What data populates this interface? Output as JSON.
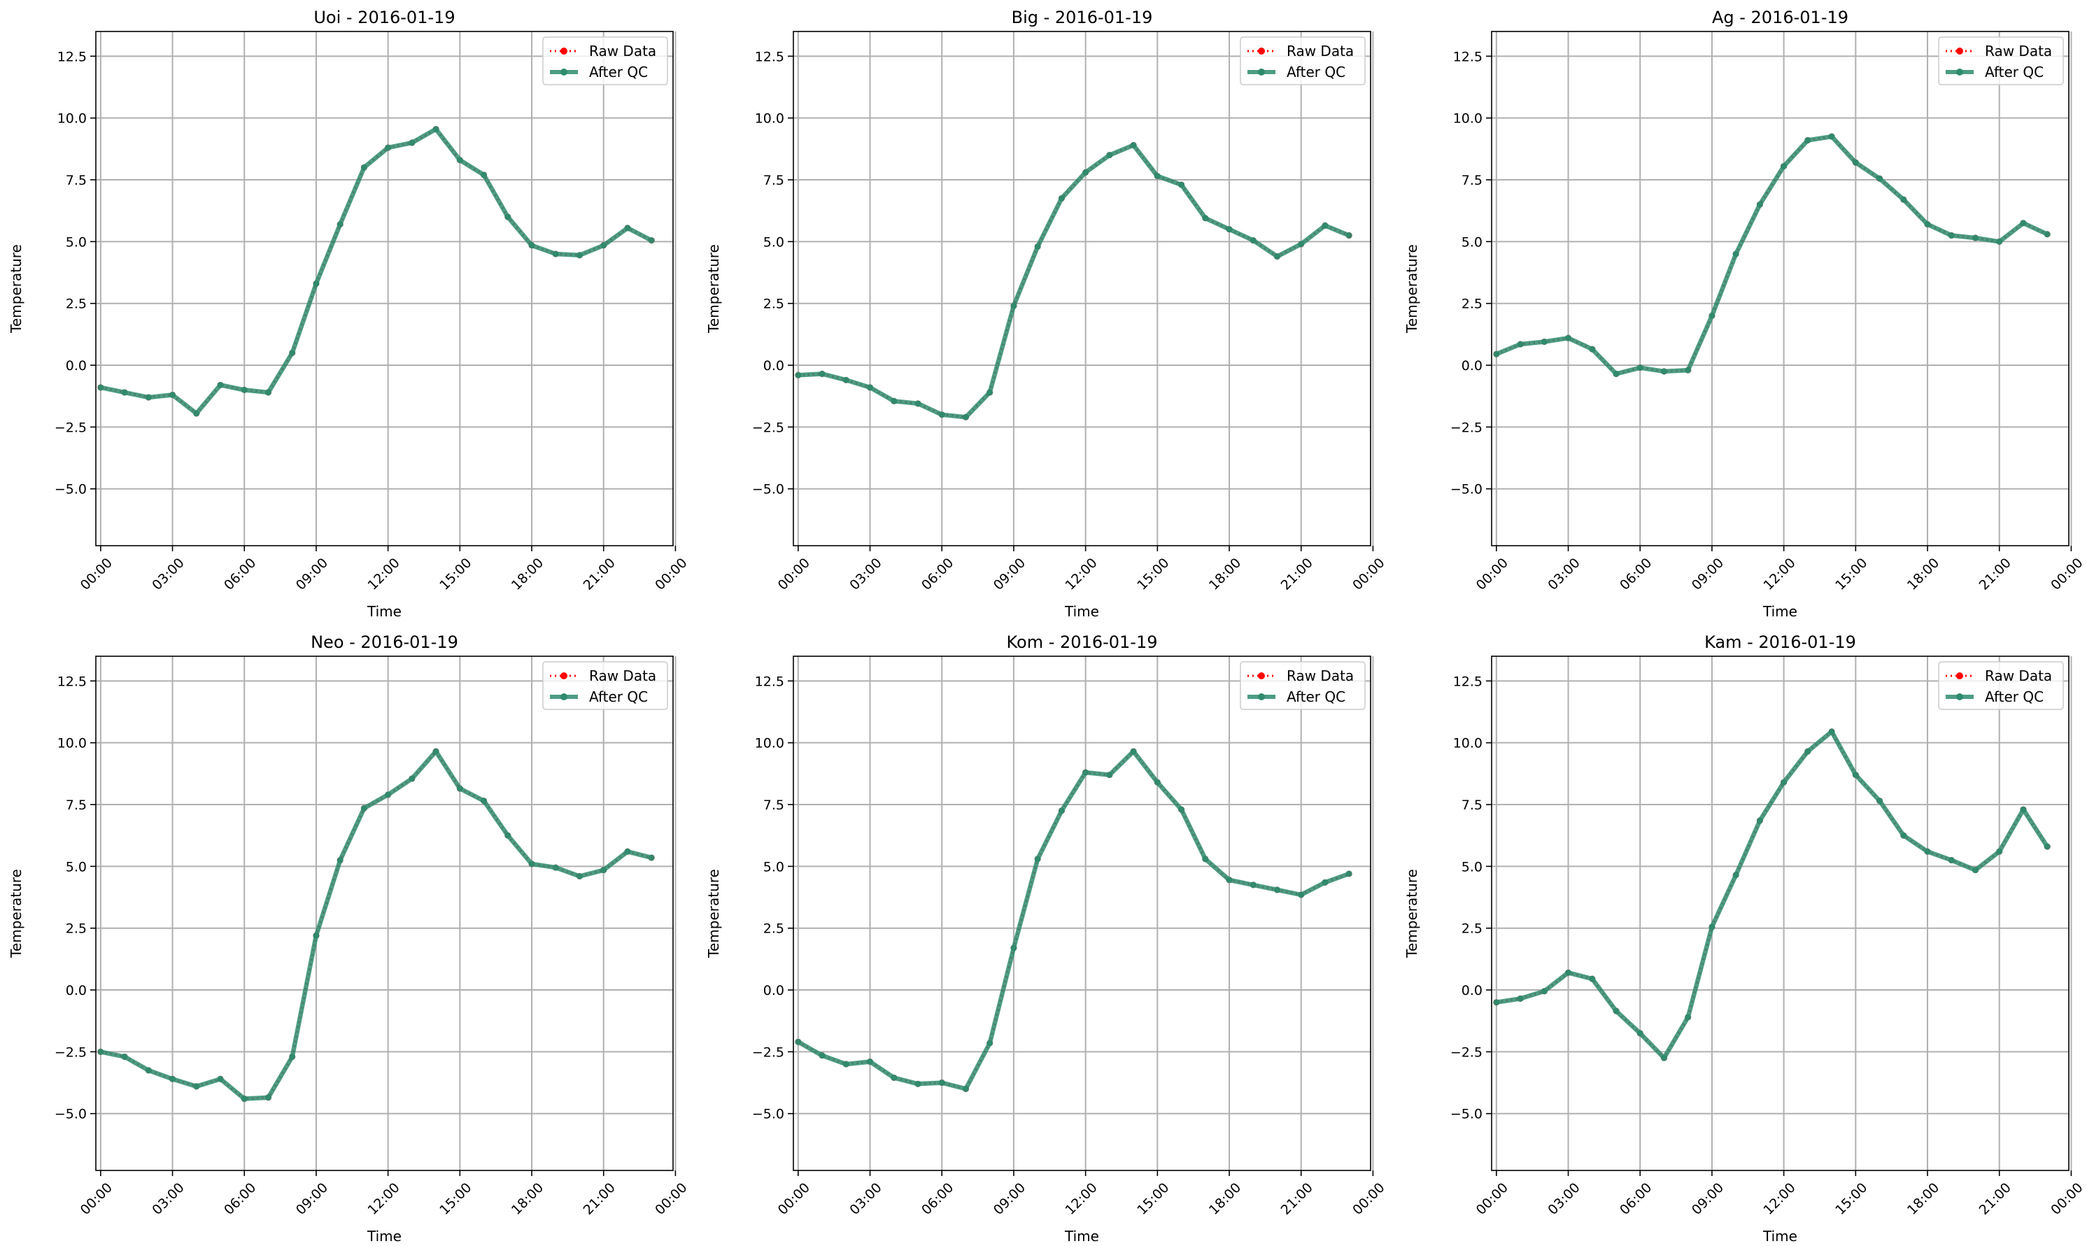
{
  "figure": {
    "raw_color": "#ff0000",
    "qc_color": "#2e8b6e",
    "legend_labels": [
      "Raw Data",
      "After QC"
    ],
    "legend_position": "top-right",
    "xlabel": "Time",
    "ylabel": "Temperature",
    "grid": true
  },
  "chart_data": [
    {
      "type": "line",
      "title": "Uoi - 2016-01-19",
      "xlabel": "Time",
      "ylabel": "Temperature",
      "x": [
        0,
        1,
        2,
        3,
        4,
        5,
        6,
        7,
        8,
        9,
        10,
        11,
        12,
        13,
        14,
        15,
        16,
        17,
        18,
        19,
        20,
        21,
        22,
        23
      ],
      "series": [
        {
          "name": "Raw Data",
          "values": [
            -0.9,
            -1.1,
            -1.3,
            -1.2,
            -1.95,
            -0.8,
            -1.0,
            -1.1,
            0.5,
            3.3,
            5.7,
            8.0,
            8.8,
            9.0,
            9.55,
            8.3,
            7.7,
            6.0,
            4.85,
            4.5,
            4.45,
            4.85,
            5.55,
            5.05
          ]
        },
        {
          "name": "After QC",
          "values": [
            -0.9,
            -1.1,
            -1.3,
            -1.2,
            -1.95,
            -0.8,
            -1.0,
            -1.1,
            0.5,
            3.3,
            5.7,
            8.0,
            8.8,
            9.0,
            9.55,
            8.3,
            7.7,
            6.0,
            4.85,
            4.5,
            4.45,
            4.85,
            5.55,
            5.05
          ]
        }
      ],
      "xlim": [
        -0.2,
        23.9
      ],
      "ylim": [
        -7.3,
        13.5
      ],
      "xticks": [
        "00:00",
        "03:00",
        "06:00",
        "09:00",
        "12:00",
        "15:00",
        "18:00",
        "21:00",
        "00:00"
      ],
      "yticks": [
        "−5.0",
        "−2.5",
        "0.0",
        "2.5",
        "5.0",
        "7.5",
        "10.0",
        "12.5"
      ]
    },
    {
      "type": "line",
      "title": "Big - 2016-01-19",
      "xlabel": "Time",
      "ylabel": "Temperature",
      "x": [
        0,
        1,
        2,
        3,
        4,
        5,
        6,
        7,
        8,
        9,
        10,
        11,
        12,
        13,
        14,
        15,
        16,
        17,
        18,
        19,
        20,
        21,
        22,
        23
      ],
      "series": [
        {
          "name": "Raw Data",
          "values": [
            -0.4,
            -0.35,
            -0.6,
            -0.9,
            -1.45,
            -1.55,
            -2.0,
            -2.1,
            -1.1,
            2.4,
            4.8,
            6.75,
            7.8,
            8.5,
            8.9,
            7.65,
            7.3,
            5.95,
            5.5,
            5.05,
            4.4,
            4.9,
            5.65,
            5.25
          ]
        },
        {
          "name": "After QC",
          "values": [
            -0.4,
            -0.35,
            -0.6,
            -0.9,
            -1.45,
            -1.55,
            -2.0,
            -2.1,
            -1.1,
            2.4,
            4.8,
            6.75,
            7.8,
            8.5,
            8.9,
            7.65,
            7.3,
            5.95,
            5.5,
            5.05,
            4.4,
            4.9,
            5.65,
            5.25
          ]
        }
      ],
      "xlim": [
        -0.2,
        23.9
      ],
      "ylim": [
        -7.3,
        13.5
      ],
      "xticks": [
        "00:00",
        "03:00",
        "06:00",
        "09:00",
        "12:00",
        "15:00",
        "18:00",
        "21:00",
        "00:00"
      ],
      "yticks": [
        "−5.0",
        "−2.5",
        "0.0",
        "2.5",
        "5.0",
        "7.5",
        "10.0",
        "12.5"
      ]
    },
    {
      "type": "line",
      "title": "Ag - 2016-01-19",
      "xlabel": "Time",
      "ylabel": "Temperature",
      "x": [
        0,
        1,
        2,
        3,
        4,
        5,
        6,
        7,
        8,
        9,
        10,
        11,
        12,
        13,
        14,
        15,
        16,
        17,
        18,
        19,
        20,
        21,
        22,
        23
      ],
      "series": [
        {
          "name": "Raw Data",
          "values": [
            0.45,
            0.85,
            0.95,
            1.1,
            0.65,
            -0.35,
            -0.1,
            -0.25,
            -0.2,
            2.0,
            4.5,
            6.5,
            8.05,
            9.1,
            9.25,
            8.2,
            7.55,
            6.7,
            5.7,
            5.25,
            5.15,
            5.0,
            5.75,
            5.3
          ]
        },
        {
          "name": "After QC",
          "values": [
            0.45,
            0.85,
            0.95,
            1.1,
            0.65,
            -0.35,
            -0.1,
            -0.25,
            -0.2,
            2.0,
            4.5,
            6.5,
            8.05,
            9.1,
            9.25,
            8.2,
            7.55,
            6.7,
            5.7,
            5.25,
            5.15,
            5.0,
            5.75,
            5.3
          ]
        }
      ],
      "xlim": [
        -0.2,
        23.9
      ],
      "ylim": [
        -7.3,
        13.5
      ],
      "xticks": [
        "00:00",
        "03:00",
        "06:00",
        "09:00",
        "12:00",
        "15:00",
        "18:00",
        "21:00",
        "00:00"
      ],
      "yticks": [
        "−5.0",
        "−2.5",
        "0.0",
        "2.5",
        "5.0",
        "7.5",
        "10.0",
        "12.5"
      ]
    },
    {
      "type": "line",
      "title": "Neo - 2016-01-19",
      "xlabel": "Time",
      "ylabel": "Temperature",
      "x": [
        0,
        1,
        2,
        3,
        4,
        5,
        6,
        7,
        8,
        9,
        10,
        11,
        12,
        13,
        14,
        15,
        16,
        17,
        18,
        19,
        20,
        21,
        22,
        23
      ],
      "series": [
        {
          "name": "Raw Data",
          "values": [
            -2.5,
            -2.7,
            -3.25,
            -3.6,
            -3.9,
            -3.6,
            -4.4,
            -4.35,
            -2.7,
            2.2,
            5.25,
            7.35,
            7.9,
            8.55,
            9.65,
            8.15,
            7.65,
            6.25,
            5.1,
            4.95,
            4.6,
            4.85,
            5.6,
            5.35
          ]
        },
        {
          "name": "After QC",
          "values": [
            -2.5,
            -2.7,
            -3.25,
            -3.6,
            -3.9,
            -3.6,
            -4.4,
            -4.35,
            -2.7,
            2.2,
            5.25,
            7.35,
            7.9,
            8.55,
            9.65,
            8.15,
            7.65,
            6.25,
            5.1,
            4.95,
            4.6,
            4.85,
            5.6,
            5.35
          ]
        }
      ],
      "xlim": [
        -0.2,
        23.9
      ],
      "ylim": [
        -7.3,
        13.5
      ],
      "xticks": [
        "00:00",
        "03:00",
        "06:00",
        "09:00",
        "12:00",
        "15:00",
        "18:00",
        "21:00",
        "00:00"
      ],
      "yticks": [
        "−5.0",
        "−2.5",
        "0.0",
        "2.5",
        "5.0",
        "7.5",
        "10.0",
        "12.5"
      ]
    },
    {
      "type": "line",
      "title": "Kom - 2016-01-19",
      "xlabel": "Time",
      "ylabel": "Temperature",
      "x": [
        0,
        1,
        2,
        3,
        4,
        5,
        6,
        7,
        8,
        9,
        10,
        11,
        12,
        13,
        14,
        15,
        16,
        17,
        18,
        19,
        20,
        21,
        22,
        23
      ],
      "series": [
        {
          "name": "Raw Data",
          "values": [
            -2.1,
            -2.65,
            -3.0,
            -2.9,
            -3.55,
            -3.8,
            -3.75,
            -4.0,
            -2.15,
            1.7,
            5.3,
            7.25,
            8.8,
            8.7,
            9.65,
            8.4,
            7.3,
            5.3,
            4.45,
            4.25,
            4.05,
            3.85,
            4.35,
            4.7
          ]
        },
        {
          "name": "After QC",
          "values": [
            -2.1,
            -2.65,
            -3.0,
            -2.9,
            -3.55,
            -3.8,
            -3.75,
            -4.0,
            -2.15,
            1.7,
            5.3,
            7.25,
            8.8,
            8.7,
            9.65,
            8.4,
            7.3,
            5.3,
            4.45,
            4.25,
            4.05,
            3.85,
            4.35,
            4.7
          ]
        }
      ],
      "xlim": [
        -0.2,
        23.9
      ],
      "ylim": [
        -7.3,
        13.5
      ],
      "xticks": [
        "00:00",
        "03:00",
        "06:00",
        "09:00",
        "12:00",
        "15:00",
        "18:00",
        "21:00",
        "00:00"
      ],
      "yticks": [
        "−5.0",
        "−2.5",
        "0.0",
        "2.5",
        "5.0",
        "7.5",
        "10.0",
        "12.5"
      ]
    },
    {
      "type": "line",
      "title": "Kam - 2016-01-19",
      "xlabel": "Time",
      "ylabel": "Temperature",
      "x": [
        0,
        1,
        2,
        3,
        4,
        5,
        6,
        7,
        8,
        9,
        10,
        11,
        12,
        13,
        14,
        15,
        16,
        17,
        18,
        19,
        20,
        21,
        22,
        23
      ],
      "series": [
        {
          "name": "Raw Data",
          "values": [
            -0.5,
            -0.35,
            -0.05,
            0.7,
            0.45,
            -0.85,
            -1.75,
            -2.75,
            -1.1,
            2.55,
            4.65,
            6.85,
            8.4,
            9.65,
            10.45,
            8.7,
            7.65,
            6.25,
            5.6,
            5.25,
            4.85,
            5.6,
            7.3,
            5.8
          ]
        },
        {
          "name": "After QC",
          "values": [
            -0.5,
            -0.35,
            -0.05,
            0.7,
            0.45,
            -0.85,
            -1.75,
            -2.75,
            -1.1,
            2.55,
            4.65,
            6.85,
            8.4,
            9.65,
            10.45,
            8.7,
            7.65,
            6.25,
            5.6,
            5.25,
            4.85,
            5.6,
            7.3,
            5.8
          ]
        }
      ],
      "xlim": [
        -0.2,
        23.9
      ],
      "ylim": [
        -7.3,
        13.5
      ],
      "xticks": [
        "00:00",
        "03:00",
        "06:00",
        "09:00",
        "12:00",
        "15:00",
        "18:00",
        "21:00",
        "00:00"
      ],
      "yticks": [
        "−5.0",
        "−2.5",
        "0.0",
        "2.5",
        "5.0",
        "7.5",
        "10.0",
        "12.5"
      ]
    }
  ]
}
